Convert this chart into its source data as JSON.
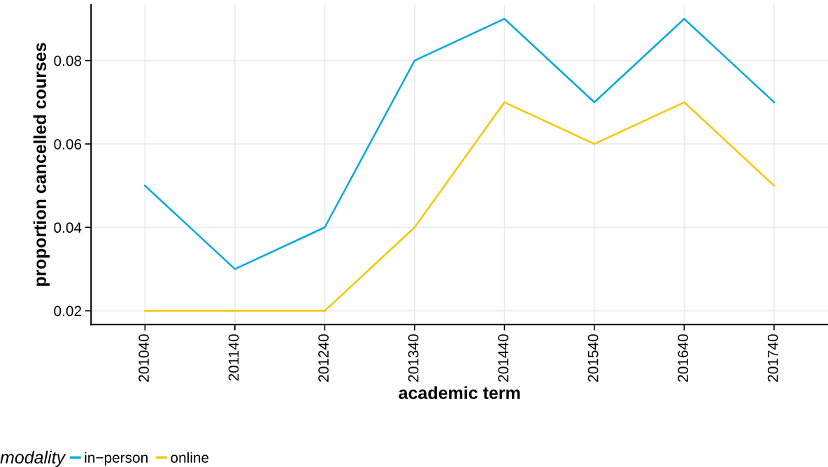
{
  "chart_data": {
    "type": "line",
    "xlabel": "academic term",
    "ylabel": "proportion cancelled courses",
    "legend_title": "modality",
    "categories": [
      "201040",
      "201140",
      "201240",
      "201340",
      "201440",
      "201540",
      "201640",
      "201740"
    ],
    "series": [
      {
        "name": "in−person",
        "color": "#00a9e0",
        "values": [
          0.05,
          0.03,
          0.04,
          0.08,
          0.09,
          0.07,
          0.09,
          0.07
        ]
      },
      {
        "name": "online",
        "color": "#f5c800",
        "values": [
          0.02,
          0.02,
          0.02,
          0.04,
          0.07,
          0.06,
          0.07,
          0.05
        ]
      }
    ],
    "ylim": [
      0.0167,
      0.0934
    ],
    "yticks": [
      0.02,
      0.04,
      0.06,
      0.08
    ],
    "grid": true,
    "legend": "bottom",
    "marker": "none",
    "line_style": "solid"
  }
}
